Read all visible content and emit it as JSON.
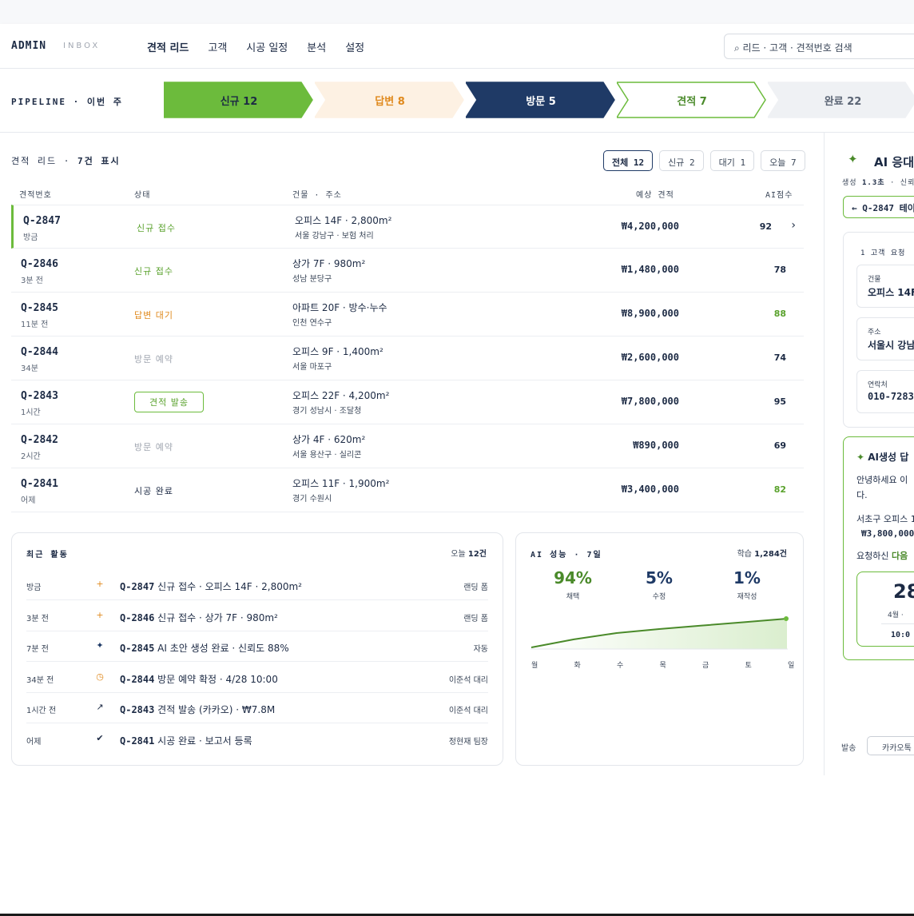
{
  "header": {
    "brand": "ADMIN",
    "brand_sub": "INBOX",
    "nav": [
      "견적 리드",
      "고객",
      "시공 일정",
      "분석",
      "설정"
    ],
    "search_placeholder": "⌕  리드 · 고객 · 견적번호 검색"
  },
  "pipeline": {
    "label": "PIPELINE · 이번 주",
    "stages": [
      {
        "label": "신규 12",
        "fill": "#6cbb3c",
        "stroke": "#6cbb3c",
        "text": "#1c2a44"
      },
      {
        "label": "답변 8",
        "fill": "#fdf1e3",
        "stroke": "#fdf1e3",
        "text": "#e08a1e"
      },
      {
        "label": "방문 5",
        "fill": "#1f3a66",
        "stroke": "#1f3a66",
        "text": "#ffffff"
      },
      {
        "label": "견적 7",
        "fill": "#ffffff",
        "stroke": "#6cbb3c",
        "text": "#4a8a2a"
      },
      {
        "label": "완료 22",
        "fill": "#eff1f4",
        "stroke": "#eff1f4",
        "text": "#5a6474"
      }
    ]
  },
  "list": {
    "title_prefix": "견적 리드 · ",
    "title_count": "7건 표시",
    "filters": [
      "전체 12",
      "신규 2",
      "대기 1",
      "오늘 7"
    ],
    "columns": [
      "견적번호",
      "상태",
      "건물 · 주소",
      "예상 견적",
      "AI점수"
    ],
    "rows": [
      {
        "id": "Q-2847",
        "time": "방금",
        "status": "신규 접수",
        "status_type": "new",
        "building": "오피스 14F · 2,800m²",
        "address": "서울 강남구 · 보험 처리",
        "price": "₩4,200,000",
        "score": "92",
        "score_green": false
      },
      {
        "id": "Q-2846",
        "time": "3분 전",
        "status": "신규 접수",
        "status_type": "new",
        "building": "상가 7F · 980m²",
        "address": "성남 분당구",
        "price": "₩1,480,000",
        "score": "78",
        "score_green": false
      },
      {
        "id": "Q-2845",
        "time": "11분 전",
        "status": "답변 대기",
        "status_type": "wait",
        "building": "아파트 20F · 방수·누수",
        "address": "인천 연수구",
        "price": "₩8,900,000",
        "score": "88",
        "score_green": true
      },
      {
        "id": "Q-2844",
        "time": "34분",
        "status": "방문 예약",
        "status_type": "visit",
        "building": "오피스 9F · 1,400m²",
        "address": "서울 마포구",
        "price": "₩2,600,000",
        "score": "74",
        "score_green": false
      },
      {
        "id": "Q-2843",
        "time": "1시간",
        "status": "견적 발송",
        "status_type": "quote",
        "building": "오피스 22F · 4,200m²",
        "address": "경기 성남시 · 조달청",
        "price": "₩7,800,000",
        "score": "95",
        "score_green": false
      },
      {
        "id": "Q-2842",
        "time": "2시간",
        "status": "방문 예약",
        "status_type": "visit",
        "building": "상가 4F · 620m²",
        "address": "서울 용산구 · 실리콘",
        "price": "₩890,000",
        "score": "69",
        "score_green": false
      },
      {
        "id": "Q-2841",
        "time": "어제",
        "status": "시공 완료",
        "status_type": "done",
        "building": "오피스 11F · 1,900m²",
        "address": "경기 수원시",
        "price": "₩3,400,000",
        "score": "82",
        "score_green": true
      }
    ]
  },
  "activity": {
    "title": "최근 활동",
    "count_prefix": "오늘",
    "count": "12건",
    "items": [
      {
        "time": "방금",
        "icon": "plus-icon",
        "glyph": "+",
        "color": "#e08a1e",
        "id": "Q-2847",
        "text": " 신규 접수 · 오피스 14F · 2,800m²",
        "who": "랜딩 폼"
      },
      {
        "time": "3분 전",
        "icon": "plus-icon",
        "glyph": "+",
        "color": "#e08a1e",
        "id": "Q-2846",
        "text": " 신규 접수 · 상가 7F · 980m²",
        "who": "랜딩 폼"
      },
      {
        "time": "7분 전",
        "icon": "sparkle-icon",
        "glyph": "✦",
        "color": "#1f3a66",
        "id": "Q-2845",
        "text": " AI 초안 생성 완료 · 신뢰도 88%",
        "who": "자동"
      },
      {
        "time": "34분 전",
        "icon": "clock-icon",
        "glyph": "◷",
        "color": "#e08a1e",
        "id": "Q-2844",
        "text": " 방문 예약 확정 · 4/28 10:00",
        "who": "이준석 대리"
      },
      {
        "time": "1시간 전",
        "icon": "arrow-up-right-icon",
        "glyph": "↗",
        "color": "#1c2a44",
        "id": "Q-2843",
        "text": " 견적 발송 (카카오) · ₩7.8M",
        "who": "이준석 대리"
      },
      {
        "time": "어제",
        "icon": "check-icon",
        "glyph": "✔",
        "color": "#1c2a44",
        "id": "Q-2841",
        "text": " 시공 완료 · 보고서 등록",
        "who": "정현재 팀장"
      }
    ]
  },
  "perf": {
    "title": "AI 성능 · 7일",
    "learn_prefix": "학습",
    "learn": "1,284건",
    "stats": [
      {
        "value": "94%",
        "label": "채택",
        "color": "#4a8a2a"
      },
      {
        "value": "5%",
        "label": "수정",
        "color": "#1f3a66"
      },
      {
        "value": "1%",
        "label": "재작성",
        "color": "#1f3a66"
      }
    ],
    "days": [
      "월",
      "화",
      "수",
      "목",
      "금",
      "토",
      "일"
    ]
  },
  "chart_data": {
    "type": "area",
    "x": [
      "월",
      "화",
      "수",
      "목",
      "금",
      "토",
      "일"
    ],
    "series": [
      {
        "values": [
          0.0,
          0.28,
          0.5,
          0.64,
          0.76,
          0.88,
          1.0
        ]
      }
    ]
  },
  "right_panel": {
    "title": "AI 응대",
    "sub_prefix": "생성 ",
    "sub_time": "1.3초",
    "sub_rest": " · 신뢰",
    "tab": "← Q-2847 테이",
    "request_title": "1   고객 요청",
    "fields": [
      {
        "label": "건물",
        "value": "오피스 14F"
      },
      {
        "label": "주소",
        "value": "서울시 강남"
      },
      {
        "label": "연락처",
        "value": "010-7283"
      }
    ],
    "ai_title": "AI생성 답",
    "ai_line1": "안녕하세요  이",
    "ai_line2": "다.",
    "ai_line3": "서초구 오피스 1",
    "ai_price": "₩3,800,000",
    "ai_line4_prefix": "요청하신 ",
    "ai_line4_em": "다음 ",
    "date_day": "28",
    "date_month": "4월  ·",
    "date_time": "10:0",
    "send_label": "발송",
    "send_button": "카카오톡"
  }
}
